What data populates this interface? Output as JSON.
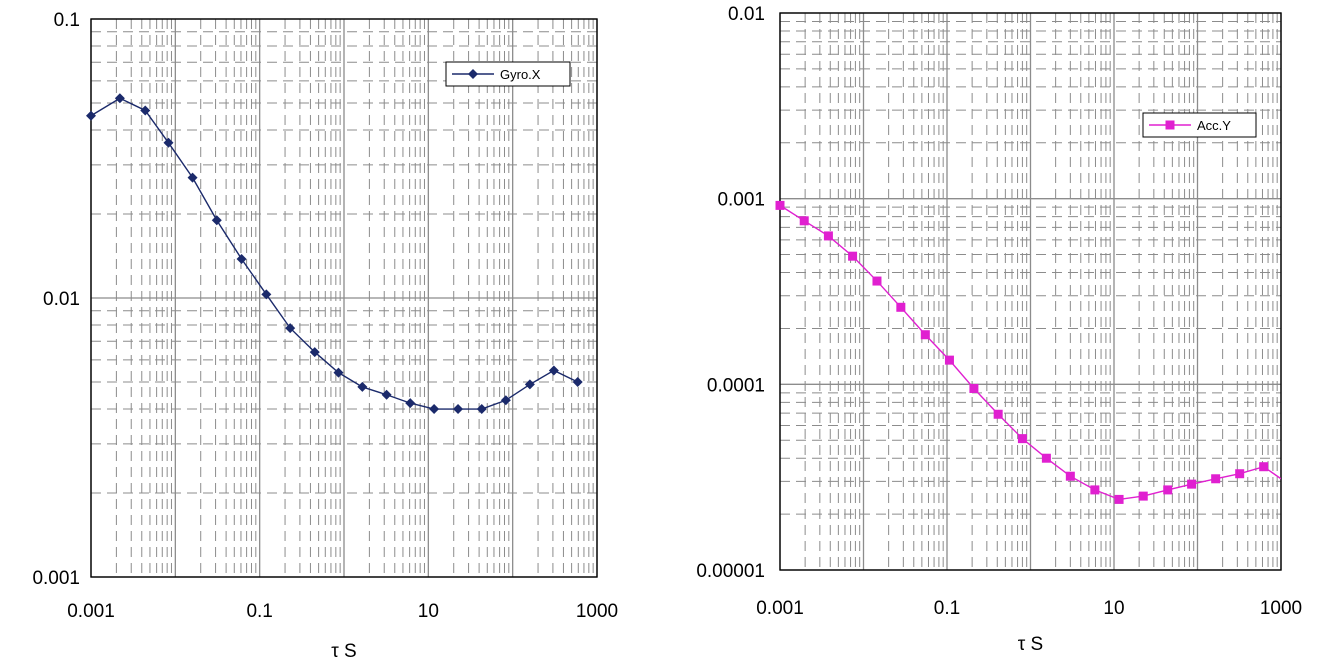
{
  "chart_data": [
    {
      "type": "line",
      "xscale": "log",
      "yscale": "log",
      "xlim": [
        0.001,
        1000
      ],
      "ylim": [
        0.001,
        0.1
      ],
      "xlabel": "τ S",
      "ylabel": "",
      "grid": true,
      "legend_position": "top-right",
      "x_ticks": [
        "0.001",
        "0.1",
        "10",
        "1000"
      ],
      "y_ticks": [
        "0.001",
        "0.01",
        "0.1"
      ],
      "series": [
        {
          "name": "Gyro.X",
          "color": "#1b2a6b",
          "marker": "diamond",
          "x": [
            0.001,
            0.0022,
            0.0044,
            0.0083,
            0.016,
            0.031,
            0.061,
            0.12,
            0.23,
            0.45,
            0.86,
            1.65,
            3.2,
            6.1,
            11.7,
            22.5,
            43,
            83,
            160,
            308,
            590
          ],
          "y": [
            0.045,
            0.052,
            0.047,
            0.036,
            0.027,
            0.019,
            0.0138,
            0.0103,
            0.0078,
            0.0064,
            0.0054,
            0.0048,
            0.0045,
            0.0042,
            0.004,
            0.004,
            0.004,
            0.0043,
            0.0049,
            0.0055,
            0.005
          ]
        }
      ]
    },
    {
      "type": "line",
      "xscale": "log",
      "yscale": "log",
      "xlim": [
        0.001,
        1000
      ],
      "ylim": [
        1e-05,
        0.01
      ],
      "xlabel": "τ S",
      "ylabel": "",
      "grid": true,
      "legend_position": "top-right",
      "x_ticks": [
        "0.001",
        "0.1",
        "10",
        "1000"
      ],
      "y_ticks": [
        "0.00001",
        "0.0001",
        "0.001",
        "0.01"
      ],
      "series": [
        {
          "name": "Acc.Y",
          "color": "#e020d0",
          "marker": "square",
          "x": [
            0.001,
            0.00195,
            0.0038,
            0.0074,
            0.0145,
            0.028,
            0.055,
            0.107,
            0.21,
            0.41,
            0.8,
            1.55,
            3.0,
            5.9,
            11.5,
            22.4,
            44,
            85,
            165,
            320,
            620,
            1000
          ],
          "y": [
            0.00092,
            0.00076,
            0.00063,
            0.00049,
            0.00036,
            0.00026,
            0.000185,
            0.000135,
            9.5e-05,
            6.9e-05,
            5.1e-05,
            4e-05,
            3.2e-05,
            2.7e-05,
            2.4e-05,
            2.5e-05,
            2.7e-05,
            2.9e-05,
            3.1e-05,
            3.3e-05,
            3.6e-05,
            3.1e-05
          ]
        }
      ]
    }
  ]
}
